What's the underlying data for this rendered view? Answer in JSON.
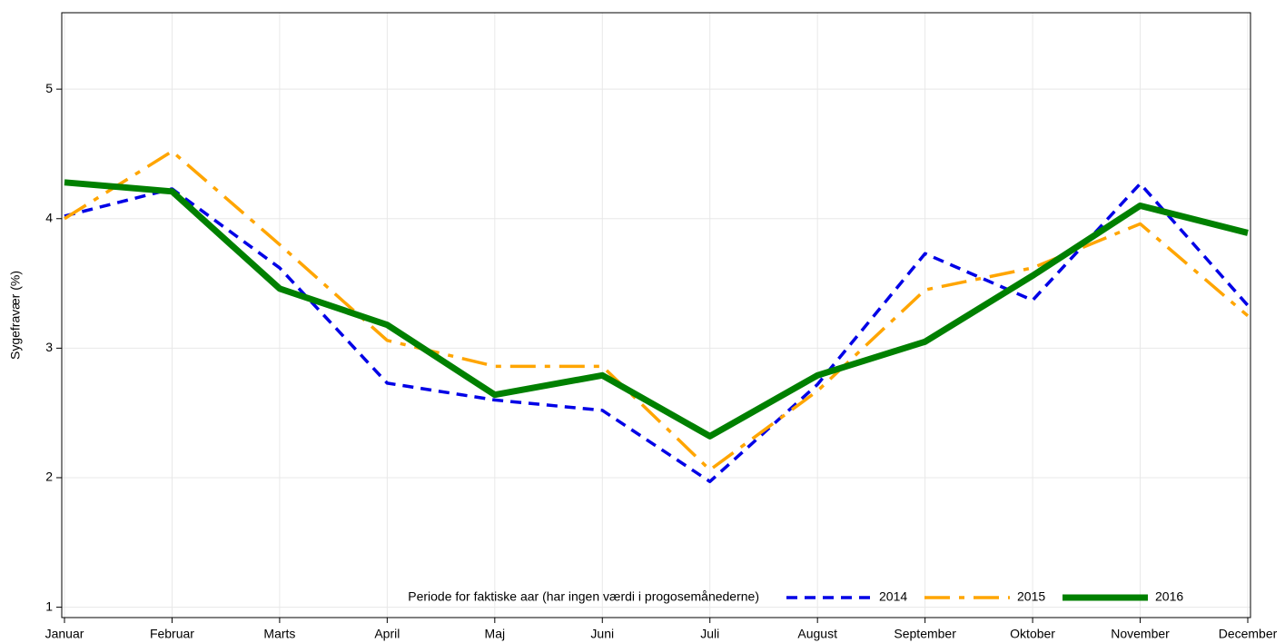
{
  "chart_data": {
    "type": "line",
    "y_label": "Sygefravær (%)",
    "categories": [
      "Januar",
      "Februar",
      "Marts",
      "April",
      "Maj",
      "Juni",
      "Juli",
      "August",
      "September",
      "Oktober",
      "November",
      "December"
    ],
    "series": [
      {
        "name": "2014",
        "color": "#0000e6",
        "line_style": "dashed",
        "values": [
          4.02,
          4.23,
          3.62,
          2.73,
          2.6,
          2.52,
          1.97,
          2.72,
          3.73,
          3.37,
          4.27,
          3.33
        ]
      },
      {
        "name": "2015",
        "color": "#ffa500",
        "line_style": "dash-dot",
        "values": [
          4.0,
          4.52,
          3.8,
          3.06,
          2.86,
          2.86,
          2.06,
          2.67,
          3.45,
          3.62,
          3.96,
          3.25
        ]
      },
      {
        "name": "2016",
        "color": "#008000",
        "line_style": "solid",
        "values": [
          4.28,
          4.21,
          3.46,
          3.18,
          2.64,
          2.79,
          2.32,
          2.79,
          3.05,
          3.56,
          4.1,
          3.89
        ]
      }
    ],
    "ylim": [
      0.92,
      5.59
    ],
    "yticks": [
      1,
      2,
      3,
      4,
      5
    ],
    "grid": true,
    "legend": {
      "title": "Periode for faktiske aar (har ingen værdi i progosemånederne)",
      "position": "lower right"
    }
  }
}
